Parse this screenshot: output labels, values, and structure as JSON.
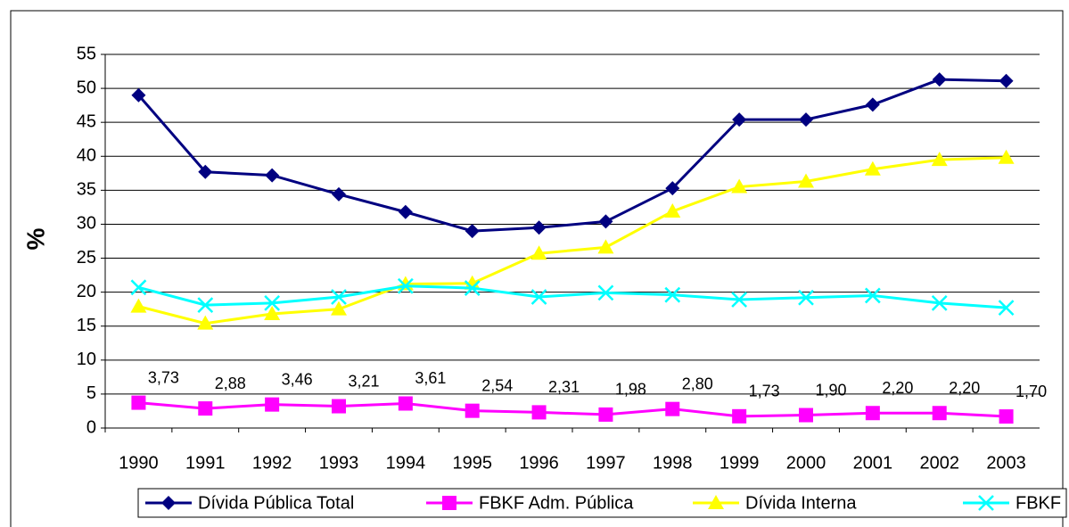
{
  "chart_data": {
    "type": "line",
    "y_label": "%",
    "categories": [
      "1990",
      "1991",
      "1992",
      "1993",
      "1994",
      "1995",
      "1996",
      "1997",
      "1998",
      "1999",
      "2000",
      "2001",
      "2002",
      "2003"
    ],
    "series": [
      {
        "name": "Dívida Pública Total",
        "color": "#000080",
        "marker": "diamond",
        "values": [
          49,
          37.7,
          37.2,
          34.4,
          31.8,
          29,
          29.5,
          30.4,
          35.3,
          45.4,
          45.4,
          47.6,
          51.3,
          51.1
        ]
      },
      {
        "name": "FBKF Adm. Pública",
        "color": "#FF00FF",
        "marker": "square",
        "values": [
          3.73,
          2.88,
          3.46,
          3.21,
          3.61,
          2.54,
          2.31,
          1.98,
          2.8,
          1.73,
          1.9,
          2.2,
          2.2,
          1.7
        ],
        "value_labels": [
          "3,73",
          "2,88",
          "3,46",
          "3,21",
          "3,61",
          "2,54",
          "2,31",
          "1,98",
          "2,80",
          "1,73",
          "1,90",
          "2,20",
          "2,20",
          "1,70"
        ]
      },
      {
        "name": "Dívida Interna",
        "color": "#FFFF00",
        "marker": "triangle",
        "values": [
          17.9,
          15.4,
          16.8,
          17.5,
          21.2,
          21.3,
          25.7,
          26.6,
          31.9,
          35.5,
          36.3,
          38.1,
          39.5,
          39.8
        ]
      },
      {
        "name": "FBKF",
        "color": "#00FFFF",
        "marker": "x",
        "values": [
          20.7,
          18.1,
          18.4,
          19.3,
          20.9,
          20.6,
          19.3,
          19.9,
          19.6,
          18.9,
          19.2,
          19.5,
          18.4,
          17.7
        ]
      }
    ],
    "ylim": [
      0,
      55
    ],
    "yticks": [
      0,
      5,
      10,
      15,
      20,
      25,
      30,
      35,
      40,
      45,
      50,
      55
    ],
    "grid": true,
    "legend": "bottom"
  }
}
